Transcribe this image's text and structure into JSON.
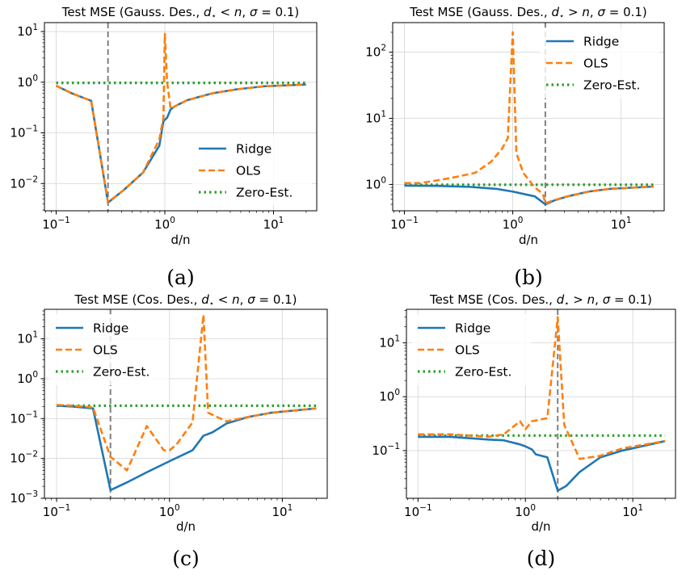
{
  "chart_data": [
    {
      "type": "line",
      "title": "Test MSE (Gauss. Des., d⋆ < n, σ = 0.1)",
      "title_parts": {
        "prefix": "Test MSE (Gauss. Des., ",
        "d": "d",
        "star": "⋆",
        "rel": " < ",
        "n": "n",
        "mid": ", ",
        "sigma": "σ",
        "eq": " = 0.1)"
      },
      "caption": "(a)",
      "xlabel": "d/n",
      "xscale": "log",
      "yscale": "log",
      "xlim": [
        0.078,
        25
      ],
      "ylim": [
        0.0029,
        15
      ],
      "xticks": [
        {
          "value": 0.1,
          "base": "10",
          "exp": "−1"
        },
        {
          "value": 1,
          "base": "10",
          "exp": "0"
        },
        {
          "value": 10,
          "base": "10",
          "exp": "1"
        }
      ],
      "yticks": [
        {
          "value": 0.01,
          "base": "10",
          "exp": "−2"
        },
        {
          "value": 0.1,
          "base": "10",
          "exp": "−1"
        },
        {
          "value": 1,
          "base": "10",
          "exp": "0"
        },
        {
          "value": 10,
          "base": "10",
          "exp": "1"
        }
      ],
      "grid": true,
      "vline": 0.3,
      "legend": "bottom-right",
      "series": [
        {
          "name": "Ridge",
          "color": "#1f77b4",
          "dash": "solid",
          "x": [
            0.1,
            0.14,
            0.21,
            0.3,
            0.42,
            0.63,
            0.89,
            0.97,
            1.05,
            1.13,
            1.22,
            1.6,
            2.7,
            4.5,
            8.1,
            20
          ],
          "y": [
            0.85,
            0.6,
            0.43,
            0.0042,
            0.0075,
            0.0165,
            0.056,
            0.17,
            0.2,
            0.29,
            0.33,
            0.44,
            0.6,
            0.72,
            0.83,
            0.9
          ]
        },
        {
          "name": "OLS",
          "color": "#ff7f0e",
          "dash": "dashed",
          "x": [
            0.1,
            0.14,
            0.21,
            0.3,
            0.42,
            0.63,
            0.89,
            0.97,
            1.0,
            1.05,
            1.13,
            1.22,
            1.6,
            2.7,
            4.5,
            8.1,
            20
          ],
          "y": [
            0.85,
            0.6,
            0.43,
            0.0043,
            0.0075,
            0.0165,
            0.075,
            0.2,
            9.0,
            1.0,
            0.3,
            0.33,
            0.44,
            0.6,
            0.72,
            0.83,
            0.9
          ]
        },
        {
          "name": "Zero-Est.",
          "color": "#2ca02c",
          "dash": "dotted",
          "x": [
            0.1,
            20
          ],
          "y": [
            0.97,
            0.97
          ]
        }
      ]
    },
    {
      "type": "line",
      "title": "Test MSE (Gauss. Des., d⋆ > n, σ = 0.1)",
      "title_parts": {
        "prefix": "Test MSE (Gauss. Des., ",
        "d": "d",
        "star": "⋆",
        "rel": " > ",
        "n": "n",
        "mid": ", ",
        "sigma": "σ",
        "eq": " = 0.1)"
      },
      "caption": "(b)",
      "xlabel": "d/n",
      "xscale": "log",
      "yscale": "log",
      "xlim": [
        0.078,
        25
      ],
      "ylim": [
        0.4,
        280
      ],
      "xticks": [
        {
          "value": 0.1,
          "base": "10",
          "exp": "−1"
        },
        {
          "value": 1,
          "base": "10",
          "exp": "0"
        },
        {
          "value": 10,
          "base": "10",
          "exp": "1"
        }
      ],
      "yticks": [
        {
          "value": 1,
          "base": "10",
          "exp": "0"
        },
        {
          "value": 10,
          "base": "10",
          "exp": "1"
        },
        {
          "value": 100,
          "base": "10",
          "exp": "2"
        }
      ],
      "grid": true,
      "vline": 2.0,
      "legend": "top-right",
      "series": [
        {
          "name": "Ridge",
          "color": "#1f77b4",
          "dash": "solid",
          "x": [
            0.1,
            0.2,
            0.4,
            0.7,
            1.0,
            1.6,
            2.0,
            2.4,
            3.2,
            5,
            8,
            20
          ],
          "y": [
            0.96,
            0.95,
            0.92,
            0.86,
            0.78,
            0.66,
            0.5,
            0.57,
            0.66,
            0.78,
            0.86,
            0.93
          ]
        },
        {
          "name": "OLS",
          "color": "#ff7f0e",
          "dash": "dashed",
          "x": [
            0.1,
            0.14,
            0.2,
            0.3,
            0.45,
            0.63,
            0.8,
            0.9,
            1.0,
            1.08,
            1.25,
            1.6,
            1.9,
            2.0,
            2.4,
            3.2,
            5,
            8,
            20
          ],
          "y": [
            1.05,
            1.05,
            1.15,
            1.3,
            1.5,
            2.2,
            3.5,
            5.0,
            200,
            3.0,
            1.5,
            0.9,
            0.72,
            0.52,
            0.58,
            0.66,
            0.78,
            0.86,
            0.93
          ]
        },
        {
          "name": "Zero-Est.",
          "color": "#2ca02c",
          "dash": "dotted",
          "x": [
            0.1,
            20
          ],
          "y": [
            0.99,
            0.99
          ]
        }
      ]
    },
    {
      "type": "line",
      "title": "Test MSE (Cos. Des., d⋆ < n, σ = 0.1)",
      "title_parts": {
        "prefix": "Test MSE (Cos. Des., ",
        "d": "d",
        "star": "⋆",
        "rel": " < ",
        "n": "n",
        "mid": ", ",
        "sigma": "σ",
        "eq": " = 0.1)"
      },
      "caption": "(c)",
      "xlabel": "d/n",
      "xscale": "log",
      "yscale": "log",
      "xlim": [
        0.078,
        25
      ],
      "ylim": [
        0.001,
        55
      ],
      "xticks": [
        {
          "value": 0.1,
          "base": "10",
          "exp": "−1"
        },
        {
          "value": 1,
          "base": "10",
          "exp": "0"
        },
        {
          "value": 10,
          "base": "10",
          "exp": "1"
        }
      ],
      "yticks": [
        {
          "value": 0.001,
          "base": "10",
          "exp": "−3"
        },
        {
          "value": 0.01,
          "base": "10",
          "exp": "−2"
        },
        {
          "value": 0.1,
          "base": "10",
          "exp": "−1"
        },
        {
          "value": 1,
          "base": "10",
          "exp": "0"
        },
        {
          "value": 10,
          "base": "10",
          "exp": "1"
        }
      ],
      "grid": true,
      "vline": 0.3,
      "legend": "top-left",
      "series": [
        {
          "name": "Ridge",
          "color": "#1f77b4",
          "dash": "solid",
          "x": [
            0.1,
            0.14,
            0.21,
            0.3,
            0.42,
            0.63,
            1.0,
            1.6,
            2.0,
            2.4,
            3.2,
            5,
            8,
            20
          ],
          "y": [
            0.21,
            0.2,
            0.18,
            0.0016,
            0.0025,
            0.0045,
            0.0085,
            0.016,
            0.037,
            0.045,
            0.075,
            0.11,
            0.14,
            0.18
          ]
        },
        {
          "name": "OLS",
          "color": "#ff7f0e",
          "dash": "dashed",
          "x": [
            0.1,
            0.14,
            0.21,
            0.3,
            0.42,
            0.63,
            0.89,
            1.0,
            1.15,
            1.6,
            2.0,
            2.2,
            3.2,
            5,
            8,
            20
          ],
          "y": [
            0.22,
            0.21,
            0.19,
            0.011,
            0.005,
            0.065,
            0.016,
            0.016,
            0.022,
            0.08,
            40,
            0.14,
            0.085,
            0.11,
            0.14,
            0.18
          ]
        },
        {
          "name": "Zero-Est.",
          "color": "#2ca02c",
          "dash": "dotted",
          "x": [
            0.1,
            20
          ],
          "y": [
            0.21,
            0.21
          ]
        }
      ]
    },
    {
      "type": "line",
      "title": "Test MSE (Cos. Des., d⋆ > n, σ = 0.1)",
      "title_parts": {
        "prefix": "Test MSE (Cos. Des., ",
        "d": "d",
        "star": "⋆",
        "rel": " > ",
        "n": "n",
        "mid": ", ",
        "sigma": "σ",
        "eq": " = 0.1)"
      },
      "caption": "(d)",
      "xlabel": "d/n",
      "xscale": "log",
      "yscale": "log",
      "xlim": [
        0.078,
        25
      ],
      "ylim": [
        0.013,
        42
      ],
      "xticks": [
        {
          "value": 0.1,
          "base": "10",
          "exp": "−1"
        },
        {
          "value": 1,
          "base": "10",
          "exp": "0"
        },
        {
          "value": 10,
          "base": "10",
          "exp": "1"
        }
      ],
      "yticks": [
        {
          "value": 0.1,
          "base": "10",
          "exp": "−1"
        },
        {
          "value": 1,
          "base": "10",
          "exp": "0"
        },
        {
          "value": 10,
          "base": "10",
          "exp": "1"
        }
      ],
      "grid": true,
      "vline": 2.0,
      "legend": "top-left",
      "series": [
        {
          "name": "Ridge",
          "color": "#1f77b4",
          "dash": "solid",
          "x": [
            0.1,
            0.2,
            0.3,
            0.45,
            0.63,
            0.89,
            1.0,
            1.15,
            1.25,
            1.6,
            2.0,
            2.4,
            3.2,
            5,
            8,
            20
          ],
          "y": [
            0.18,
            0.18,
            0.17,
            0.16,
            0.155,
            0.13,
            0.12,
            0.105,
            0.085,
            0.075,
            0.018,
            0.022,
            0.04,
            0.075,
            0.1,
            0.15
          ]
        },
        {
          "name": "OLS",
          "color": "#ff7f0e",
          "dash": "dashed",
          "x": [
            0.1,
            0.14,
            0.2,
            0.3,
            0.45,
            0.63,
            0.89,
            1.0,
            1.15,
            1.6,
            2.0,
            2.3,
            3.2,
            5,
            8,
            20
          ],
          "y": [
            0.2,
            0.2,
            0.2,
            0.19,
            0.18,
            0.2,
            0.35,
            0.25,
            0.35,
            0.4,
            30,
            0.3,
            0.07,
            0.08,
            0.11,
            0.15
          ]
        },
        {
          "name": "Zero-Est.",
          "color": "#2ca02c",
          "dash": "dotted",
          "x": [
            0.1,
            20
          ],
          "y": [
            0.19,
            0.19
          ]
        }
      ]
    }
  ]
}
